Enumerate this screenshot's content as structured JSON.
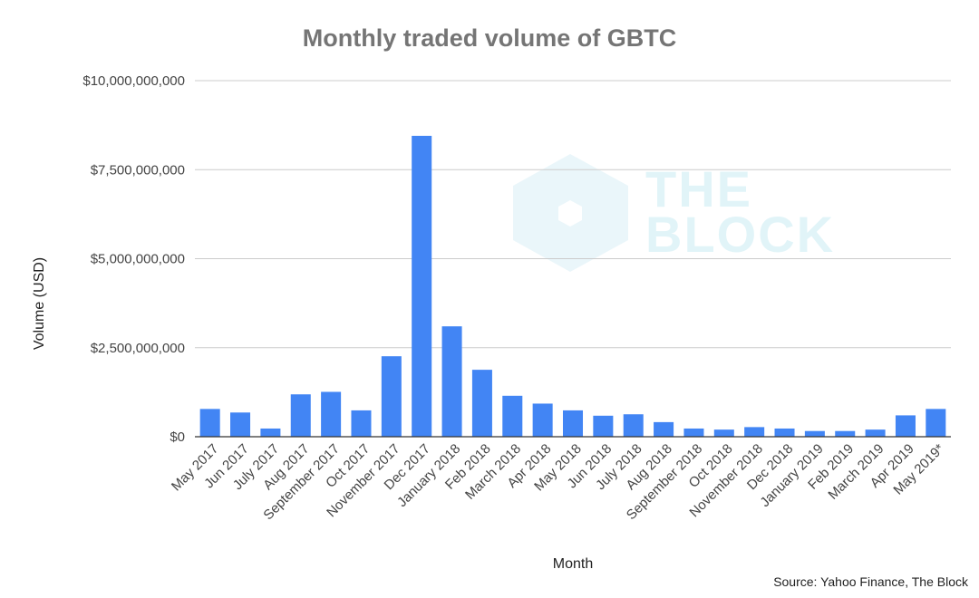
{
  "chart_data": {
    "type": "bar",
    "title": "Monthly traded volume of GBTC",
    "xlabel": "Month",
    "ylabel": "Volume (USD)",
    "ylim": [
      0,
      10000000000
    ],
    "yticks": [
      0,
      2500000000,
      5000000000,
      7500000000,
      10000000000
    ],
    "ytick_labels": [
      "$0",
      "$2,500,000,000",
      "$5,000,000,000",
      "$7,500,000,000",
      "$10,000,000,000"
    ],
    "grid": true,
    "bar_color": "#4285f4",
    "categories": [
      "May 2017",
      "Jun 2017",
      "July 2017",
      "Aug 2017",
      "September 2017",
      "Oct 2017",
      "November 2017",
      "Dec 2017",
      "January 2018",
      "Feb 2018",
      "March 2018",
      "Apr 2018",
      "May 2018",
      "Jun 2018",
      "July 2018",
      "Aug 2018",
      "September 2018",
      "Oct 2018",
      "November 2018",
      "Dec 2018",
      "January 2019",
      "Feb 2019",
      "March 2019",
      "Apr 2019",
      "May 2019*"
    ],
    "values": [
      780000000,
      680000000,
      230000000,
      1190000000,
      1260000000,
      740000000,
      2260000000,
      8450000000,
      3100000000,
      1880000000,
      1150000000,
      930000000,
      740000000,
      590000000,
      630000000,
      410000000,
      230000000,
      200000000,
      270000000,
      230000000,
      160000000,
      160000000,
      200000000,
      600000000,
      780000000
    ]
  },
  "source": "Source: Yahoo Finance, The Block",
  "watermark": {
    "line1": "THE",
    "line2": "BLOCK",
    "color": "#e1f4f8"
  }
}
